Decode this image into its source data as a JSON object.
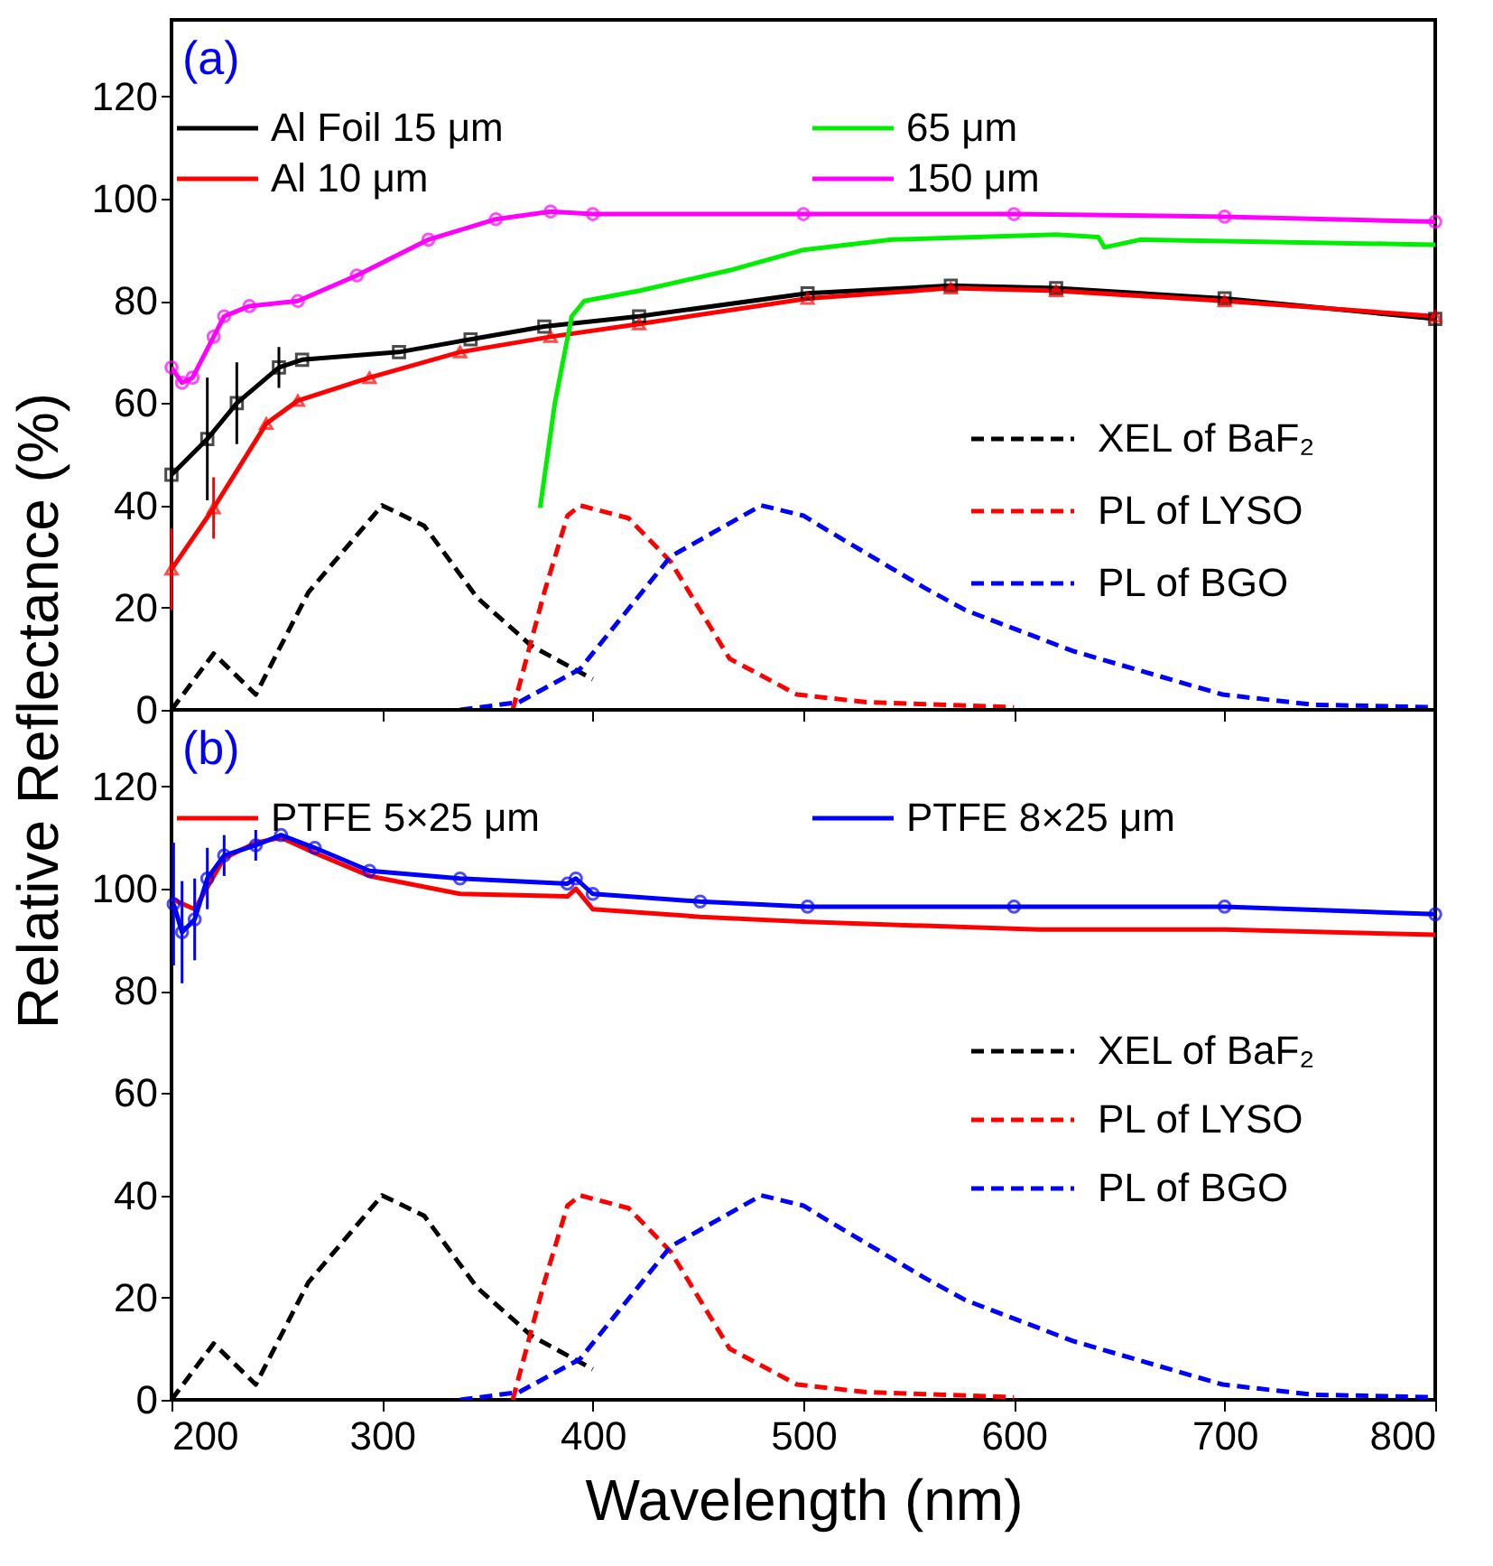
{
  "chart_data": [
    {
      "type": "line",
      "ylabel": "Relative Reflectance (%)",
      "annotations": [
        "(a)"
      ],
      "xlim": [
        200,
        800
      ],
      "xticks": [
        200,
        300,
        400,
        500,
        600,
        700,
        800
      ],
      "ylim": [
        0,
        135
      ],
      "yticks": [
        0,
        20,
        40,
        60,
        80,
        100,
        120
      ],
      "tick_labels": "y",
      "legend": "top",
      "series": [
        {
          "name": "Al Foil 15 μm",
          "color": "#000000",
          "marker": "square",
          "x": [
            200,
            217,
            231,
            251,
            262,
            308,
            342,
            377,
            422,
            502,
            570,
            620,
            700,
            800
          ],
          "values": [
            46,
            53,
            60,
            67,
            68.5,
            70,
            72.5,
            75,
            77,
            81.5,
            83,
            82.5,
            80.5,
            76.5
          ],
          "errors": [
            15,
            12,
            8,
            4,
            null,
            null,
            null,
            null,
            null,
            null,
            null,
            null,
            null,
            null
          ]
        },
        {
          "name": "Al 10 μm",
          "color": "#ff0000",
          "marker": "triangle",
          "x": [
            200,
            220,
            245,
            260,
            294,
            337,
            380,
            422,
            502,
            570,
            620,
            700,
            800
          ],
          "values": [
            27.5,
            39.5,
            56,
            60.5,
            65,
            70,
            73,
            75.5,
            80.5,
            82.5,
            82,
            80,
            77
          ],
          "errors": [
            8,
            6,
            null,
            null,
            null,
            null,
            null,
            null,
            null,
            null,
            null,
            null,
            null
          ]
        },
        {
          "name": "65 μm",
          "color": "#00ee00",
          "x": [
            375,
            382,
            390,
            396,
            422,
            465,
            500,
            542,
            620,
            640,
            643,
            660,
            800
          ],
          "values": [
            39.5,
            60,
            77,
            80,
            82,
            86,
            90,
            92,
            93,
            92.5,
            90.5,
            92,
            91
          ]
        },
        {
          "name": "150 μm",
          "color": "#ff00ff",
          "marker": "circle",
          "x": [
            200,
            205,
            210,
            220,
            225,
            237,
            260,
            288,
            322,
            354,
            380,
            400,
            500,
            600,
            700,
            800
          ],
          "values": [
            67,
            64,
            65,
            73,
            77,
            79,
            80,
            85,
            92,
            96,
            97.5,
            97,
            97,
            97,
            96.5,
            95.5
          ]
        },
        {
          "name": "XEL of BaF₂",
          "color": "#000000",
          "line_style": "dashed",
          "x": [
            200,
            220,
            240,
            265,
            300,
            320,
            345,
            371,
            400
          ],
          "values": [
            0,
            11,
            3,
            23,
            40,
            36,
            22,
            12.5,
            6
          ]
        },
        {
          "name": "PL of LYSO",
          "color": "#ff0000",
          "line_style": "dashed",
          "x": [
            362,
            377,
            388,
            394,
            417,
            437,
            465,
            497,
            530,
            600
          ],
          "values": [
            0,
            23,
            38,
            40,
            37.5,
            29,
            10,
            3,
            1.5,
            0.5
          ]
        },
        {
          "name": "PL of BGO",
          "color": "#0000ff",
          "line_style": "dashed",
          "x": [
            337,
            365,
            394,
            437,
            480,
            500,
            514,
            557,
            577,
            628,
            699,
            742,
            800
          ],
          "values": [
            0,
            1.5,
            8,
            30,
            40,
            38,
            34.5,
            24,
            19.5,
            11.5,
            3,
            1,
            0.5
          ]
        }
      ]
    },
    {
      "type": "line",
      "xlabel": "Wavelength (nm)",
      "annotations": [
        "(b)"
      ],
      "xlim": [
        200,
        800
      ],
      "xticks": [
        200,
        300,
        400,
        500,
        600,
        700,
        800
      ],
      "ylim": [
        0,
        135
      ],
      "yticks": [
        0,
        20,
        40,
        60,
        80,
        100,
        120
      ],
      "legend": "top",
      "series": [
        {
          "name": "PTFE 5×25 μm",
          "color": "#ff0000",
          "x": [
            200,
            211,
            225,
            240,
            252,
            268,
            294,
            337,
            388,
            392,
            400,
            451,
            502,
            612,
            700,
            800
          ],
          "values": [
            98,
            96,
            106,
            109,
            110,
            107,
            102.5,
            99,
            98.5,
            100,
            96,
            94.5,
            93.5,
            92,
            92,
            91
          ]
        },
        {
          "name": "PTFE 8×25 μm",
          "color": "#0000ff",
          "marker": "circle",
          "x": [
            201,
            205,
            211,
            217,
            225,
            240,
            252,
            268,
            294,
            337,
            388,
            392,
            400,
            451,
            502,
            600,
            700,
            800
          ],
          "values": [
            97,
            91.5,
            94,
            102,
            106.5,
            108.5,
            110.5,
            108,
            103.5,
            102,
            101,
            102,
            99,
            97.5,
            96.5,
            96.5,
            96.5,
            95
          ],
          "errors": [
            12,
            10,
            8,
            6,
            4,
            3,
            null,
            null,
            null,
            null,
            null,
            null,
            null,
            null,
            null,
            null,
            null,
            null
          ]
        },
        {
          "name": "XEL of BaF₂",
          "color": "#000000",
          "line_style": "dashed",
          "x": [
            200,
            220,
            240,
            265,
            300,
            320,
            345,
            371,
            400
          ],
          "values": [
            0,
            11,
            3,
            23,
            40,
            36,
            22,
            12.5,
            6
          ]
        },
        {
          "name": "PL of LYSO",
          "color": "#ff0000",
          "line_style": "dashed",
          "x": [
            362,
            377,
            388,
            394,
            417,
            437,
            465,
            497,
            530,
            600
          ],
          "values": [
            0,
            23,
            38,
            40,
            37.5,
            29,
            10,
            3,
            1.5,
            0.5
          ]
        },
        {
          "name": "PL of BGO",
          "color": "#0000ff",
          "line_style": "dashed",
          "x": [
            337,
            365,
            394,
            437,
            480,
            500,
            514,
            557,
            577,
            628,
            699,
            742,
            800
          ],
          "values": [
            0,
            1.5,
            8,
            30,
            40,
            38,
            34.5,
            24,
            19.5,
            11.5,
            3,
            1,
            0.5
          ]
        }
      ]
    }
  ]
}
